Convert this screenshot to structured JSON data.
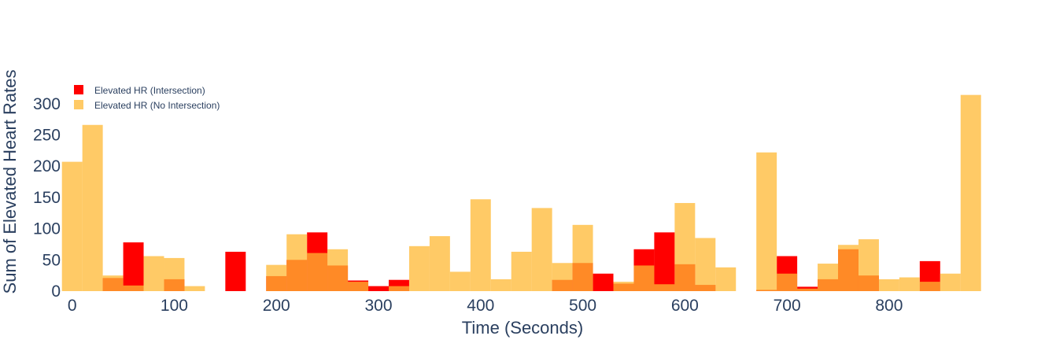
{
  "chart_data": {
    "type": "bar",
    "barmode": "overlay",
    "xlabel": "Time (Seconds)",
    "ylabel": "Sum of Elevated Heart Rates",
    "xlim": [
      -9,
      891
    ],
    "ylim": [
      0,
      340
    ],
    "bin_width": 20,
    "xticks": [
      0,
      100,
      200,
      300,
      400,
      500,
      600,
      700,
      800
    ],
    "yticks": [
      0,
      50,
      100,
      150,
      200,
      250,
      300
    ],
    "legend_position": "top-left",
    "series": [
      {
        "name": "Elevated HR (Intersection)",
        "color": "#ff0000",
        "x": [
          0,
          20,
          40,
          60,
          80,
          100,
          160,
          200,
          220,
          240,
          260,
          280,
          300,
          320,
          460,
          480,
          500,
          520,
          540,
          560,
          580,
          600,
          620,
          680,
          700,
          720,
          740,
          760,
          780,
          840
        ],
        "values": [
          0,
          0,
          21,
          78,
          0,
          19,
          63,
          24,
          50,
          94,
          41,
          17,
          8,
          18,
          0,
          18,
          45,
          28,
          12,
          67,
          94,
          43,
          10,
          2,
          56,
          7,
          19,
          67,
          25,
          48
        ]
      },
      {
        "name": "Elevated HR (No Intersection)",
        "color": "#ffb833",
        "x": [
          0,
          20,
          40,
          60,
          80,
          100,
          120,
          200,
          220,
          240,
          260,
          280,
          300,
          320,
          340,
          360,
          380,
          400,
          420,
          440,
          460,
          480,
          500,
          520,
          540,
          560,
          580,
          600,
          620,
          640,
          680,
          700,
          720,
          740,
          760,
          780,
          800,
          820,
          840,
          860,
          880
        ],
        "values": [
          207,
          266,
          25,
          9,
          56,
          53,
          8,
          42,
          91,
          61,
          67,
          15,
          0,
          8,
          72,
          88,
          31,
          147,
          19,
          63,
          133,
          45,
          106,
          0,
          15,
          41,
          11,
          141,
          85,
          38,
          222,
          28,
          4,
          44,
          74,
          83,
          19,
          22,
          15,
          28,
          314
        ]
      }
    ]
  }
}
